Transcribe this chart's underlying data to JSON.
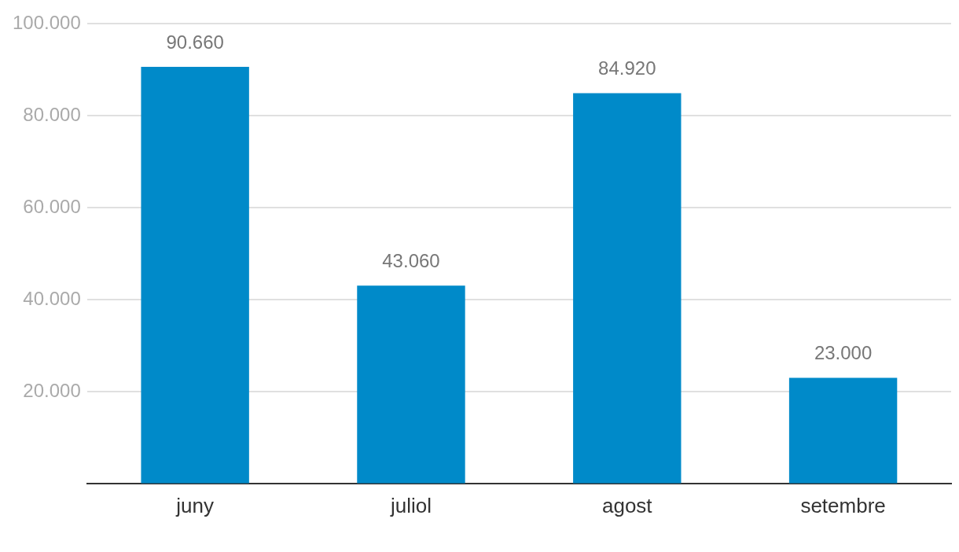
{
  "chart_data": {
    "type": "bar",
    "categories": [
      "juny",
      "juliol",
      "agost",
      "setembre"
    ],
    "values": [
      90660,
      43060,
      84920,
      23000
    ],
    "value_labels": [
      "90.660",
      "43.060",
      "84.920",
      "23.000"
    ],
    "color": "#008ac9",
    "ylim": [
      0,
      100000
    ],
    "yticks": [
      {
        "value": 20000,
        "label": "20.000"
      },
      {
        "value": 40000,
        "label": "40.000"
      },
      {
        "value": 60000,
        "label": "60.000"
      },
      {
        "value": 80000,
        "label": "80.000"
      },
      {
        "value": 100000,
        "label": "100.000"
      }
    ],
    "grid": "y",
    "legend": false
  }
}
